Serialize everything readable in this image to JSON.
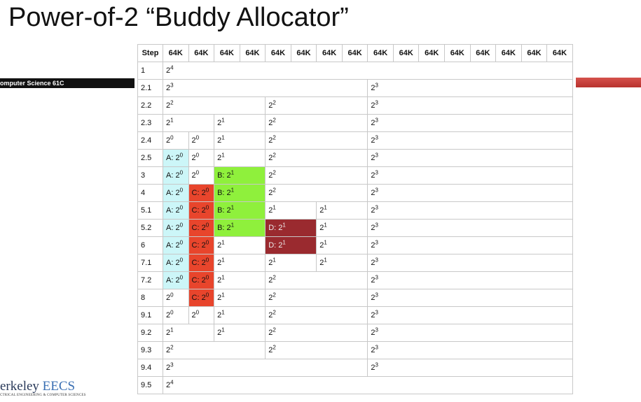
{
  "title": "Power-of-2 “Buddy Allocator”",
  "sidebar": {
    "label": "omputer Science 61C"
  },
  "logo": {
    "text": "erkeley",
    "accent": "EECS",
    "tagline": "CTRICAL ENGINEERING & COMPUTER SCIENCES"
  },
  "table": {
    "header": [
      "Step",
      "64K",
      "64K",
      "64K",
      "64K",
      "64K",
      "64K",
      "64K",
      "64K",
      "64K",
      "64K",
      "64K",
      "64K",
      "64K",
      "64K",
      "64K",
      "64K"
    ],
    "rows": [
      {
        "step": "1",
        "cells": [
          {
            "text": "2",
            "exp": "4"
          }
        ]
      },
      {
        "step": "2.1",
        "cells": [
          {
            "text": "2",
            "exp": "3"
          },
          {
            "text": "2",
            "exp": "3"
          }
        ]
      },
      {
        "step": "2.2",
        "cells": [
          {
            "text": "2",
            "exp": "2"
          },
          {
            "text": "2",
            "exp": "2"
          },
          {
            "text": "2",
            "exp": "3"
          }
        ]
      },
      {
        "step": "2.3",
        "cells": [
          {
            "text": "2",
            "exp": "1"
          },
          {
            "text": "2",
            "exp": "1"
          },
          {
            "text": "2",
            "exp": "2"
          },
          {
            "text": "2",
            "exp": "3"
          }
        ]
      },
      {
        "step": "2.4",
        "cells": [
          {
            "text": "2",
            "exp": "0"
          },
          {
            "text": "2",
            "exp": "0"
          },
          {
            "text": "2",
            "exp": "1"
          },
          {
            "text": "2",
            "exp": "2"
          },
          {
            "text": "2",
            "exp": "3"
          }
        ]
      },
      {
        "step": "2.5",
        "cells": [
          {
            "text": "A: 2",
            "exp": "0",
            "color": "#ccf6f8"
          },
          {
            "text": "2",
            "exp": "0"
          },
          {
            "text": "2",
            "exp": "1"
          },
          {
            "text": "2",
            "exp": "2"
          },
          {
            "text": "2",
            "exp": "3"
          }
        ]
      },
      {
        "step": "3",
        "cells": [
          {
            "text": "A: 2",
            "exp": "0",
            "color": "#ccf6f8"
          },
          {
            "text": "2",
            "exp": "0"
          },
          {
            "text": "B: 2",
            "exp": "1",
            "color": "#8ff03c"
          },
          {
            "text": "2",
            "exp": "2"
          },
          {
            "text": "2",
            "exp": "3"
          }
        ]
      },
      {
        "step": "4",
        "cells": [
          {
            "text": "A: 2",
            "exp": "0",
            "color": "#ccf6f8"
          },
          {
            "text": "C: 2",
            "exp": "0",
            "color": "#e8452c"
          },
          {
            "text": "B: 2",
            "exp": "1",
            "color": "#8ff03c"
          },
          {
            "text": "2",
            "exp": "2"
          },
          {
            "text": "2",
            "exp": "3"
          }
        ]
      },
      {
        "step": "5.1",
        "cells": [
          {
            "text": "A: 2",
            "exp": "0",
            "color": "#ccf6f8"
          },
          {
            "text": "C: 2",
            "exp": "0",
            "color": "#e8452c"
          },
          {
            "text": "B: 2",
            "exp": "1",
            "color": "#8ff03c"
          },
          {
            "text": "2",
            "exp": "1"
          },
          {
            "text": "2",
            "exp": "1"
          },
          {
            "text": "2",
            "exp": "3"
          }
        ]
      },
      {
        "step": "5.2",
        "cells": [
          {
            "text": "A: 2",
            "exp": "0",
            "color": "#ccf6f8"
          },
          {
            "text": "C: 2",
            "exp": "0",
            "color": "#e8452c"
          },
          {
            "text": "B: 2",
            "exp": "1",
            "color": "#8ff03c"
          },
          {
            "text": "D: 2",
            "exp": "1",
            "color": "#9a2a2f"
          },
          {
            "text": "2",
            "exp": "1"
          },
          {
            "text": "2",
            "exp": "3"
          }
        ]
      },
      {
        "step": "6",
        "cells": [
          {
            "text": "A: 2",
            "exp": "0",
            "color": "#ccf6f8"
          },
          {
            "text": "C: 2",
            "exp": "0",
            "color": "#e8452c"
          },
          {
            "text": "2",
            "exp": "1"
          },
          {
            "text": "D: 2",
            "exp": "1",
            "color": "#9a2a2f"
          },
          {
            "text": "2",
            "exp": "1"
          },
          {
            "text": "2",
            "exp": "3"
          }
        ]
      },
      {
        "step": "7.1",
        "cells": [
          {
            "text": "A: 2",
            "exp": "0",
            "color": "#ccf6f8"
          },
          {
            "text": "C: 2",
            "exp": "0",
            "color": "#e8452c"
          },
          {
            "text": "2",
            "exp": "1"
          },
          {
            "text": "2",
            "exp": "1"
          },
          {
            "text": "2",
            "exp": "1"
          },
          {
            "text": "2",
            "exp": "3"
          }
        ]
      },
      {
        "step": "7.2",
        "cells": [
          {
            "text": "A: 2",
            "exp": "0",
            "color": "#ccf6f8"
          },
          {
            "text": "C: 2",
            "exp": "0",
            "color": "#e8452c"
          },
          {
            "text": "2",
            "exp": "1"
          },
          {
            "text": "2",
            "exp": "2"
          },
          {
            "text": "2",
            "exp": "3"
          }
        ]
      },
      {
        "step": "8",
        "cells": [
          {
            "text": "2",
            "exp": "0"
          },
          {
            "text": "C: 2",
            "exp": "0",
            "color": "#e8452c"
          },
          {
            "text": "2",
            "exp": "1"
          },
          {
            "text": "2",
            "exp": "2"
          },
          {
            "text": "2",
            "exp": "3"
          }
        ]
      },
      {
        "step": "9.1",
        "cells": [
          {
            "text": "2",
            "exp": "0"
          },
          {
            "text": "2",
            "exp": "0"
          },
          {
            "text": "2",
            "exp": "1"
          },
          {
            "text": "2",
            "exp": "2"
          },
          {
            "text": "2",
            "exp": "3"
          }
        ]
      },
      {
        "step": "9.2",
        "cells": [
          {
            "text": "2",
            "exp": "1"
          },
          {
            "text": "2",
            "exp": "1"
          },
          {
            "text": "2",
            "exp": "2"
          },
          {
            "text": "2",
            "exp": "3"
          }
        ]
      },
      {
        "step": "9.3",
        "cells": [
          {
            "text": "2",
            "exp": "2"
          },
          {
            "text": "2",
            "exp": "2"
          },
          {
            "text": "2",
            "exp": "3"
          }
        ]
      },
      {
        "step": "9.4",
        "cells": [
          {
            "text": "2",
            "exp": "3"
          },
          {
            "text": "2",
            "exp": "3"
          }
        ]
      },
      {
        "step": "9.5",
        "cells": [
          {
            "text": "2",
            "exp": "4"
          }
        ]
      }
    ]
  }
}
